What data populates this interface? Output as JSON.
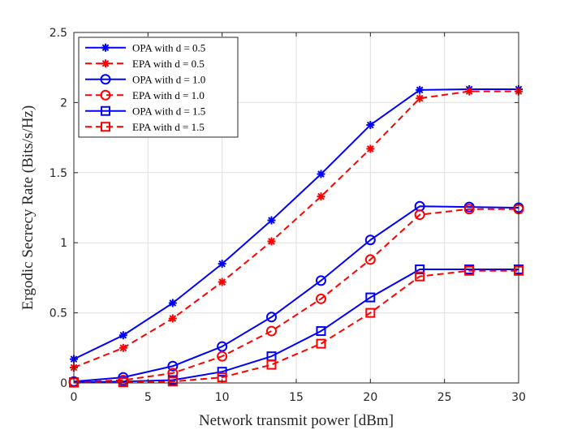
{
  "chart_data": {
    "type": "line",
    "title": "",
    "xlabel": "Network transmit power [dBm]",
    "ylabel": "Ergodic Secrecy Rate (Bits/s/Hz)",
    "xlim": [
      0,
      30
    ],
    "ylim": [
      0,
      2.5
    ],
    "grid": true,
    "legend_position": "top-left",
    "xticks": [
      0,
      5,
      10,
      15,
      20,
      25,
      30
    ],
    "xtick_labels": [
      "0",
      "5",
      "10",
      "15",
      "20",
      "25",
      "30"
    ],
    "yticks": [
      0,
      0.5,
      1,
      1.5,
      2,
      2.5
    ],
    "ytick_labels": [
      "0",
      "0.5",
      "1",
      "1.5",
      "2",
      "2.5"
    ],
    "x": [
      0,
      3.33,
      6.67,
      10,
      13.33,
      16.67,
      20,
      23.33,
      26.67,
      30
    ],
    "series": [
      {
        "name": "OPA with d = 0.5",
        "color": "#0000ff",
        "dash": "solid",
        "marker": "asterisk",
        "values": [
          0.17,
          0.34,
          0.57,
          0.85,
          1.16,
          1.49,
          1.84,
          2.09,
          2.095,
          2.095
        ]
      },
      {
        "name": "EPA with d = 0.5",
        "color": "#ff0000",
        "dash": "dashed",
        "marker": "asterisk",
        "values": [
          0.11,
          0.25,
          0.46,
          0.72,
          1.01,
          1.33,
          1.67,
          2.03,
          2.08,
          2.08
        ]
      },
      {
        "name": "OPA with d = 1.0",
        "color": "#0000ff",
        "dash": "solid",
        "marker": "circle",
        "values": [
          0.01,
          0.04,
          0.12,
          0.26,
          0.47,
          0.73,
          1.02,
          1.26,
          1.255,
          1.25
        ]
      },
      {
        "name": "EPA with d = 1.0",
        "color": "#ff0000",
        "dash": "dashed",
        "marker": "circle",
        "values": [
          0.005,
          0.02,
          0.07,
          0.19,
          0.37,
          0.6,
          0.88,
          1.2,
          1.24,
          1.24
        ]
      },
      {
        "name": "OPA with d = 1.5",
        "color": "#0000ff",
        "dash": "solid",
        "marker": "square",
        "values": [
          0.005,
          0.01,
          0.02,
          0.08,
          0.19,
          0.37,
          0.61,
          0.81,
          0.81,
          0.81
        ]
      },
      {
        "name": "EPA with d = 1.5",
        "color": "#ff0000",
        "dash": "dashed",
        "marker": "square",
        "values": [
          0.002,
          0.005,
          0.01,
          0.04,
          0.13,
          0.28,
          0.5,
          0.76,
          0.8,
          0.8
        ]
      }
    ]
  }
}
